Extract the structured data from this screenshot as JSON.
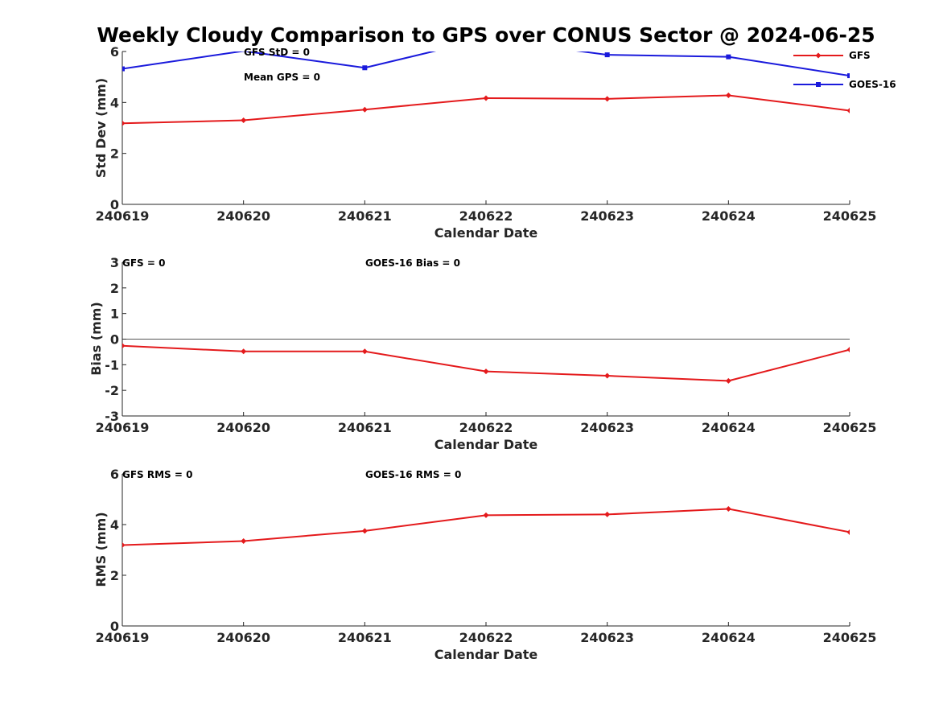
{
  "title": "Weekly Cloudy Comparison to GPS over CONUS Sector @ 2024-06-25",
  "colors": {
    "gfs": "#e41a1c",
    "goes": "#1a1adc",
    "axis": "#262626",
    "zero_line": "#555555"
  },
  "chart_data": [
    {
      "type": "line",
      "name": "std",
      "xlabel": "Calendar Date",
      "ylabel": "Std Dev (mm)",
      "ylim": [
        0,
        6
      ],
      "yticks": [
        0,
        2,
        4,
        6
      ],
      "categories": [
        "240619",
        "240620",
        "240621",
        "240622",
        "240623",
        "240624",
        "240625"
      ],
      "series": [
        {
          "name": "GFS",
          "color": "#e41a1c",
          "marker": "diamond",
          "values": [
            3.18,
            3.3,
            3.72,
            4.17,
            4.14,
            4.28,
            3.68
          ]
        },
        {
          "name": "GOES-16",
          "color": "#1a1adc",
          "marker": "square",
          "values": [
            5.32,
            6.02,
            5.36,
            6.5,
            5.87,
            5.79,
            5.05
          ]
        }
      ],
      "annotations": [
        "GFS StD = 0",
        "Mean GPS = 0"
      ],
      "legend": "top-right"
    },
    {
      "type": "line",
      "name": "bias",
      "xlabel": "Calendar Date",
      "ylabel": "Bias (mm)",
      "ylim": [
        -3,
        3
      ],
      "yticks": [
        -3,
        -2,
        -1,
        0,
        1,
        2,
        3
      ],
      "zero_line": true,
      "categories": [
        "240619",
        "240620",
        "240621",
        "240622",
        "240623",
        "240624",
        "240625"
      ],
      "series": [
        {
          "name": "GFS",
          "color": "#e41a1c",
          "marker": "diamond",
          "values": [
            -0.26,
            -0.48,
            -0.48,
            -1.26,
            -1.43,
            -1.63,
            -0.41
          ]
        }
      ],
      "annotations": [
        "GFS = 0",
        "GOES-16 Bias  = 0"
      ]
    },
    {
      "type": "line",
      "name": "rms",
      "xlabel": "Calendar Date",
      "ylabel": "RMS (mm)",
      "ylim": [
        0,
        6
      ],
      "yticks": [
        0,
        2,
        4,
        6
      ],
      "categories": [
        "240619",
        "240620",
        "240621",
        "240622",
        "240623",
        "240624",
        "240625"
      ],
      "series": [
        {
          "name": "GFS",
          "color": "#e41a1c",
          "marker": "diamond",
          "values": [
            3.19,
            3.35,
            3.75,
            4.37,
            4.4,
            4.62,
            3.7
          ]
        }
      ],
      "annotations": [
        "GFS RMS = 0",
        "GOES-16 RMS = 0"
      ]
    }
  ]
}
